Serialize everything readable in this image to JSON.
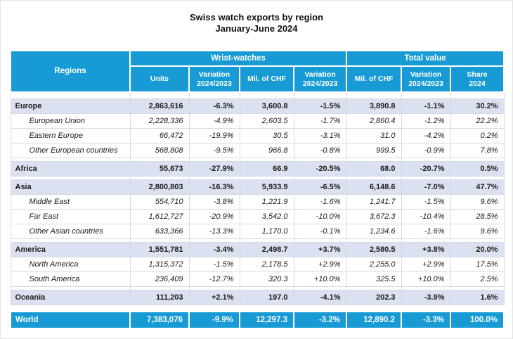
{
  "title": {
    "line1": "Swiss watch exports by region",
    "line2": "January-June 2024"
  },
  "colors": {
    "accent": "#189bd5",
    "group_row_bg": "#dbe1f0",
    "grid_line": "#d3dae6"
  },
  "table": {
    "regions_header": "Regions",
    "group_headers": {
      "wrist_watches": "Wrist-watches",
      "total_value": "Total value"
    },
    "columns": [
      "Units",
      "Variation\n2024/2023",
      "Mil. of CHF",
      "Variation\n2024/2023",
      "Mil. of CHF",
      "Variation\n2024/2023",
      "Share\n2024"
    ],
    "rows": [
      {
        "type": "group",
        "label": "Europe",
        "values": [
          "2,863,616",
          "-6.3%",
          "3,600.8",
          "-1.5%",
          "3,890.8",
          "-1.1%",
          "30.2%"
        ]
      },
      {
        "type": "sub",
        "label": "European Union",
        "values": [
          "2,228,336",
          "-4.9%",
          "2,603.5",
          "-1.7%",
          "2,860.4",
          "-1.2%",
          "22.2%"
        ]
      },
      {
        "type": "sub",
        "label": "Eastern Europe",
        "values": [
          "66,472",
          "-19.9%",
          "30.5",
          "-3.1%",
          "31.0",
          "-4.2%",
          "0.2%"
        ]
      },
      {
        "type": "sub",
        "label": "Other European countries",
        "values": [
          "568,808",
          "-9.5%",
          "966.8",
          "-0.8%",
          "999.5",
          "-0.9%",
          "7.8%"
        ]
      },
      {
        "type": "group",
        "label": "Africa",
        "values": [
          "55,673",
          "-27.9%",
          "66.9",
          "-20.5%",
          "68.0",
          "-20.7%",
          "0.5%"
        ]
      },
      {
        "type": "group",
        "label": "Asia",
        "values": [
          "2,800,803",
          "-16.3%",
          "5,933.9",
          "-6.5%",
          "6,148.6",
          "-7.0%",
          "47.7%"
        ]
      },
      {
        "type": "sub",
        "label": "Middle East",
        "values": [
          "554,710",
          "-3.8%",
          "1,221.9",
          "-1.6%",
          "1,241.7",
          "-1.5%",
          "9.6%"
        ]
      },
      {
        "type": "sub",
        "label": "Far East",
        "values": [
          "1,612,727",
          "-20.9%",
          "3,542.0",
          "-10.0%",
          "3,672.3",
          "-10.4%",
          "28.5%"
        ]
      },
      {
        "type": "sub",
        "label": "Other Asian countries",
        "values": [
          "633,366",
          "-13.3%",
          "1,170.0",
          "-0.1%",
          "1,234.6",
          "-1.6%",
          "9.6%"
        ]
      },
      {
        "type": "group",
        "label": "America",
        "values": [
          "1,551,781",
          "-3.4%",
          "2,498.7",
          "+3.7%",
          "2,580.5",
          "+3.8%",
          "20.0%"
        ]
      },
      {
        "type": "sub",
        "label": "North America",
        "values": [
          "1,315,372",
          "-1.5%",
          "2,178.5",
          "+2.9%",
          "2,255.0",
          "+2.9%",
          "17.5%"
        ]
      },
      {
        "type": "sub",
        "label": "South America",
        "values": [
          "236,409",
          "-12.7%",
          "320.3",
          "+10.0%",
          "325.5",
          "+10.0%",
          "2.5%"
        ]
      },
      {
        "type": "group",
        "label": "Oceania",
        "values": [
          "111,203",
          "+2.1%",
          "197.0",
          "-4.1%",
          "202.3",
          "-3.9%",
          "1.6%"
        ]
      },
      {
        "type": "total",
        "label": "World",
        "values": [
          "7,383,076",
          "-9.9%",
          "12,297.3",
          "-3.2%",
          "12,890.2",
          "-3.3%",
          "100.0%"
        ]
      }
    ]
  }
}
